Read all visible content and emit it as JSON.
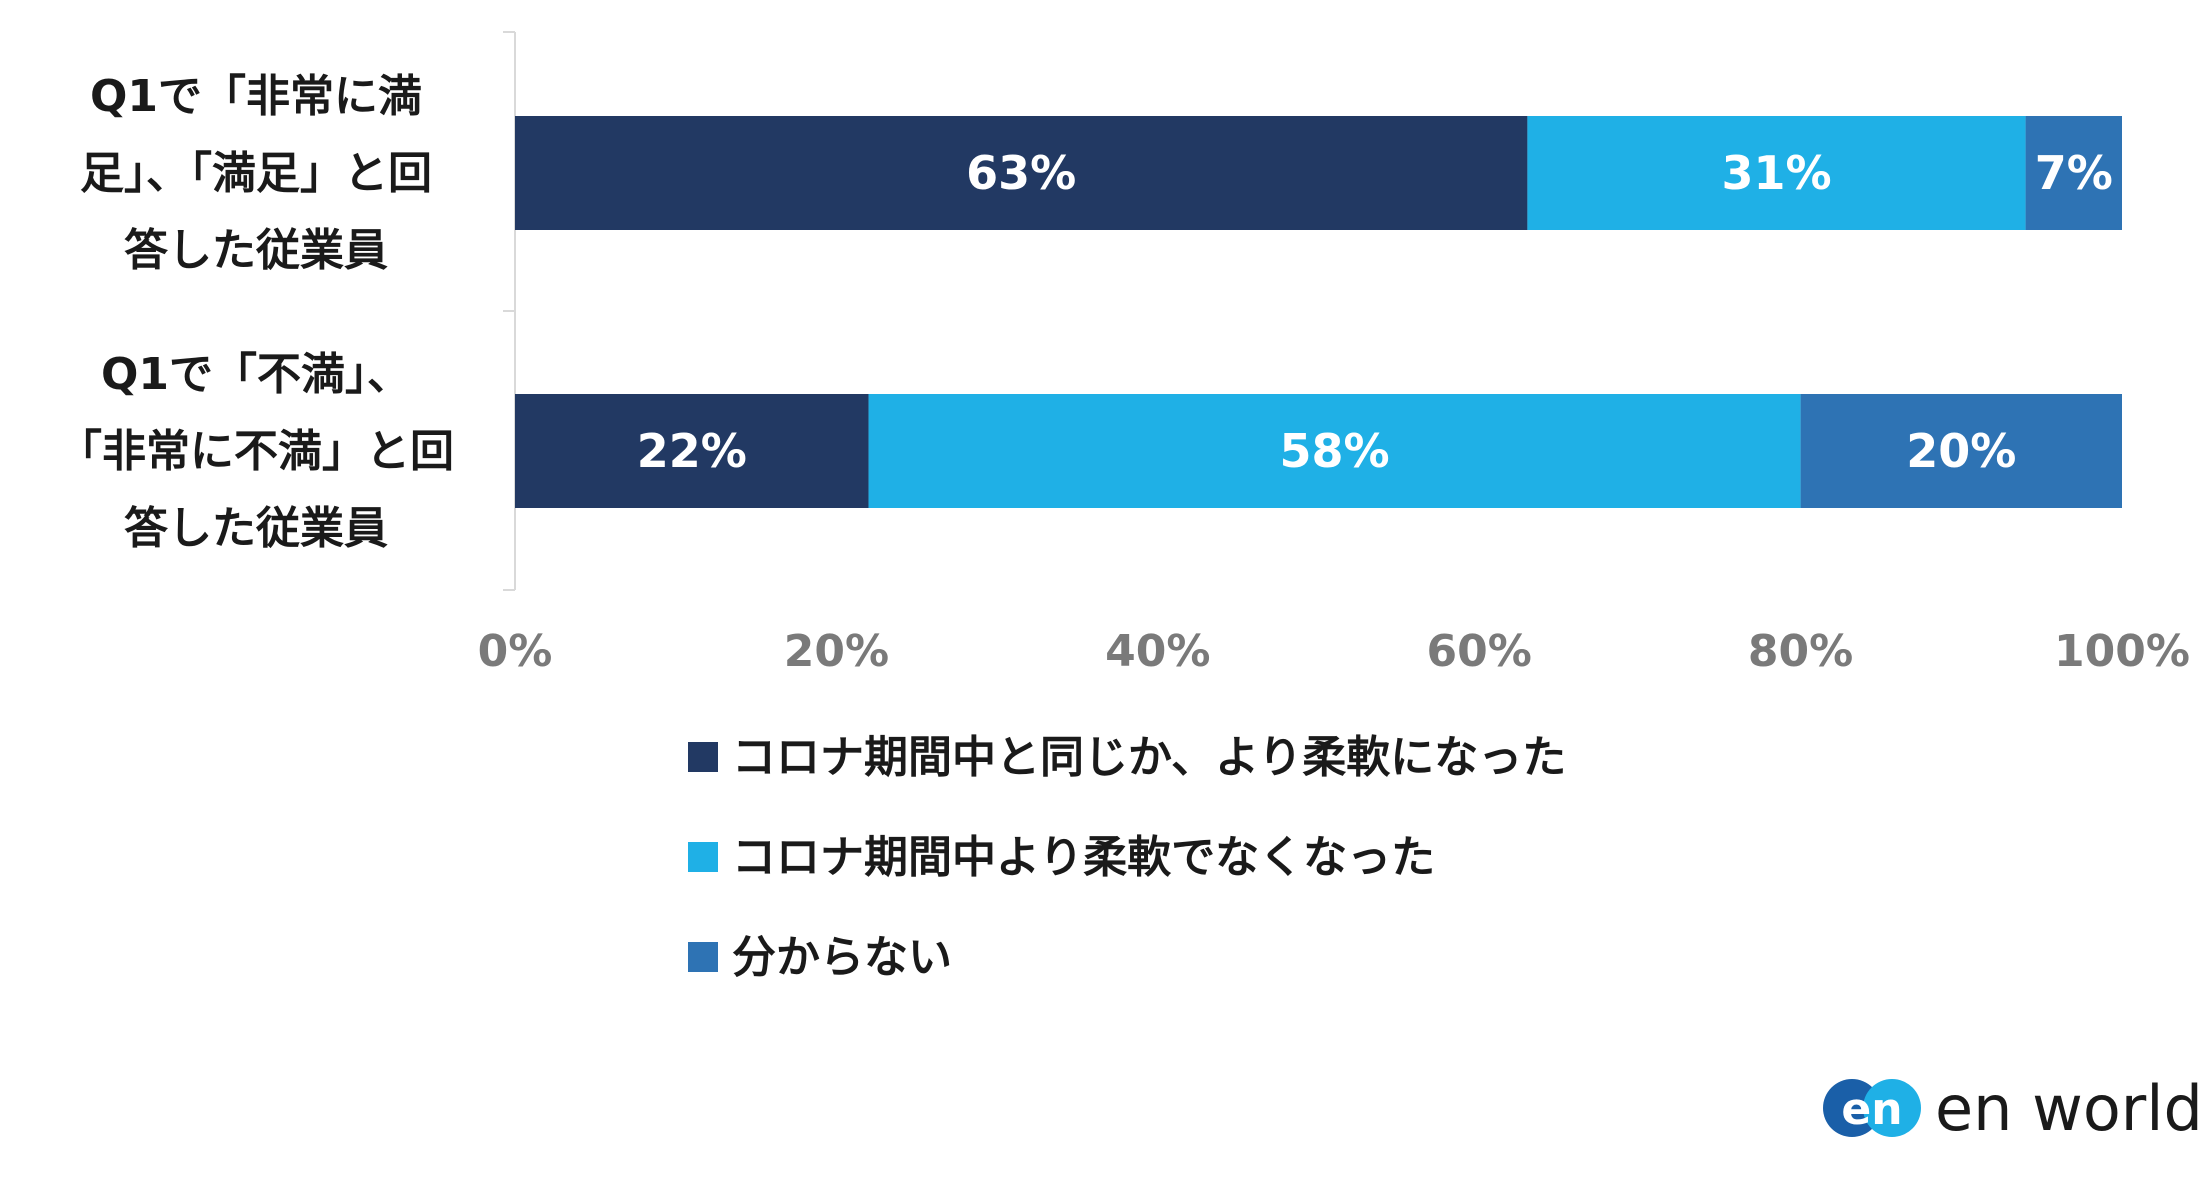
{
  "chart_data": {
    "type": "bar",
    "orientation": "horizontal",
    "stacked": true,
    "categories": [
      [
        "Q1で「非常に満",
        "足」、「満足」と回",
        "答した従業員"
      ],
      [
        "Q1で「不満」、",
        "「非常に不満」と回",
        "答した従業員"
      ]
    ],
    "series": [
      {
        "name": "コロナ期間中と同じか、より柔軟になった",
        "values": [
          63,
          22
        ],
        "labels": [
          "63%",
          "22%"
        ],
        "color": "#223963"
      },
      {
        "name": "コロナ期間中より柔軟でなくなった",
        "values": [
          31,
          58
        ],
        "labels": [
          "31%",
          "58%"
        ],
        "color": "#1fb0e6"
      },
      {
        "name": "分からない",
        "values": [
          7,
          20
        ],
        "labels": [
          "7%",
          "20%"
        ],
        "color": "#2e73b4"
      }
    ],
    "x_ticks": [
      "0%",
      "20%",
      "40%",
      "60%",
      "80%",
      "100%"
    ],
    "xlim": [
      0,
      100
    ],
    "grid": false,
    "legend_position": "bottom",
    "title": "",
    "xlabel": "",
    "ylabel": ""
  },
  "logo": {
    "badge_text": "en",
    "brand_text": "en world",
    "colors": [
      "#1a5fa8",
      "#1fb0e6"
    ]
  }
}
